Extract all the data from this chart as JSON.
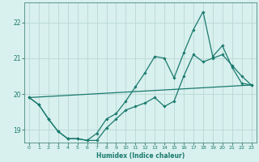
{
  "xlabel": "Humidex (Indice chaleur)",
  "bg_color": "#d8f0ee",
  "grid_color": "#b8d8d4",
  "line_color": "#1a7a6e",
  "spine_color": "#4a8a80",
  "xlim": [
    -0.5,
    23.5
  ],
  "ylim": [
    18.65,
    22.55
  ],
  "yticks": [
    19,
    20,
    21,
    22
  ],
  "xticks": [
    0,
    1,
    2,
    3,
    4,
    5,
    6,
    7,
    8,
    9,
    10,
    11,
    12,
    13,
    14,
    15,
    16,
    17,
    18,
    19,
    20,
    21,
    22,
    23
  ],
  "series1_x": [
    0,
    1,
    2,
    3,
    4,
    5,
    6,
    7,
    8,
    9,
    10,
    11,
    12,
    13,
    14,
    15,
    16,
    17,
    18,
    19,
    20,
    21,
    22,
    23
  ],
  "series1_y": [
    19.9,
    19.7,
    19.3,
    18.95,
    18.75,
    18.75,
    18.7,
    18.7,
    19.05,
    19.3,
    19.55,
    19.65,
    19.75,
    19.9,
    19.65,
    19.8,
    20.5,
    21.1,
    20.9,
    21.0,
    21.1,
    20.8,
    20.5,
    20.25
  ],
  "series2_x": [
    0,
    1,
    2,
    3,
    4,
    5,
    6,
    7,
    8,
    9,
    10,
    11,
    12,
    13,
    14,
    15,
    16,
    17,
    18,
    19,
    20,
    21,
    22,
    23
  ],
  "series2_y": [
    19.9,
    19.7,
    19.3,
    18.95,
    18.75,
    18.75,
    18.7,
    18.9,
    19.3,
    19.45,
    19.8,
    20.2,
    20.6,
    21.05,
    21.0,
    20.45,
    21.15,
    21.8,
    22.3,
    21.05,
    21.35,
    20.75,
    20.3,
    20.25
  ],
  "series3_x": [
    0,
    23
  ],
  "series3_y": [
    19.9,
    20.25
  ]
}
